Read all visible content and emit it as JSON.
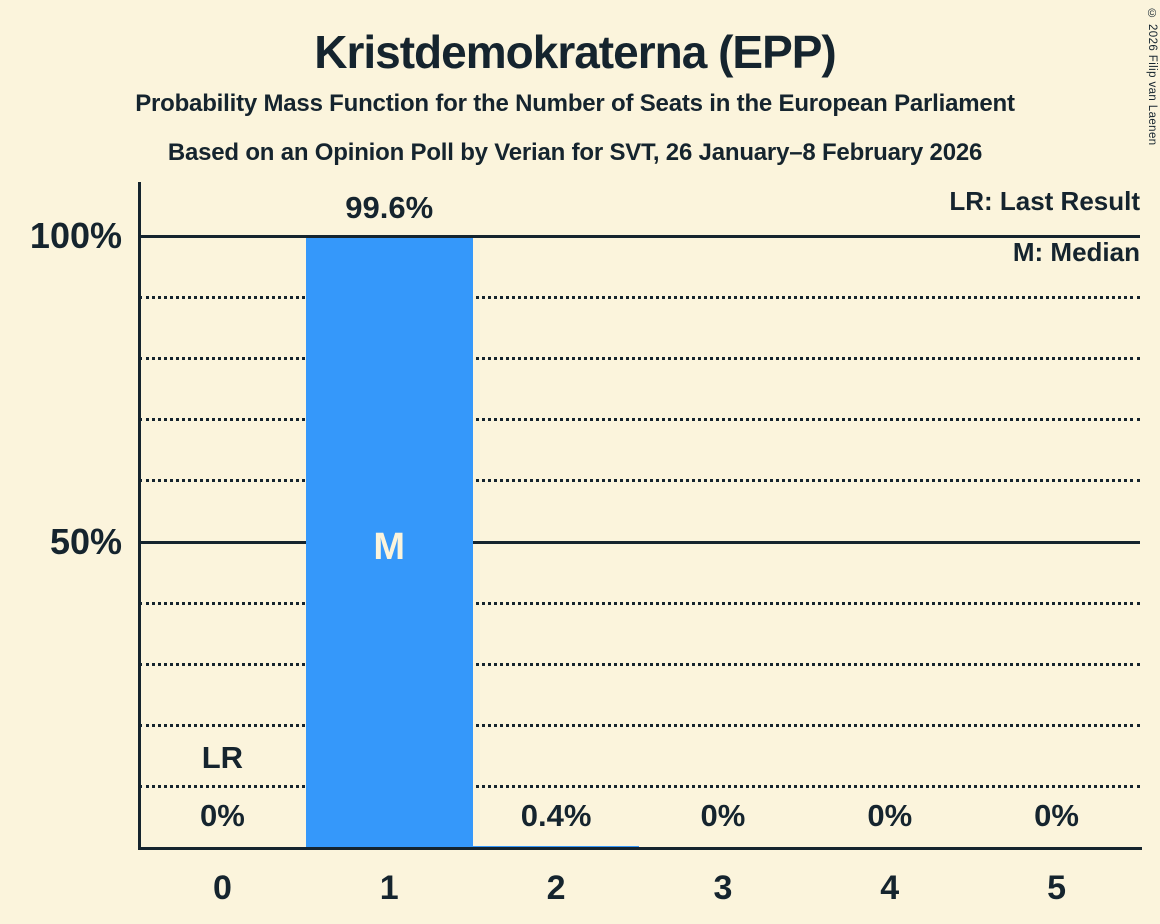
{
  "page": {
    "title": "Kristdemokraterna (EPP)",
    "subtitle": "Probability Mass Function for the Number of Seats in the European Parliament",
    "poll_line": "Based on an Opinion Poll by Verian for SVT, 26 January–8 February 2026",
    "copyright": "© 2026 Filip van Laenen"
  },
  "legend": {
    "lr": "LR: Last Result",
    "m": "M: Median"
  },
  "chart_data": {
    "type": "bar",
    "title": "Kristdemokraterna (EPP)",
    "subtitle": "Probability Mass Function for the Number of Seats in the European Parliament",
    "source_line": "Based on an Opinion Poll by Verian for SVT, 26 January–8 February 2026",
    "xlabel": "",
    "ylabel": "",
    "categories": [
      "0",
      "1",
      "2",
      "3",
      "4",
      "5"
    ],
    "values": [
      0,
      99.6,
      0.4,
      0,
      0,
      0
    ],
    "value_labels": [
      "0%",
      "99.6%",
      "0.4%",
      "0%",
      "0%",
      "0%"
    ],
    "ylim": [
      0,
      100
    ],
    "yticks": [
      {
        "label": "100%",
        "value": 100
      },
      {
        "label": "50%",
        "value": 50
      }
    ],
    "gridlines": {
      "dotted_pct": [
        10,
        20,
        30,
        40,
        60,
        70,
        80,
        90
      ],
      "solid_pct": [
        50,
        100
      ]
    },
    "legend_position": "top-right",
    "annotations": {
      "lr_text": "LR",
      "lr_category": "0",
      "median_text": "M",
      "median_category": "1"
    },
    "colors": {
      "background": "#FBF4DC",
      "bar": "#3598FA",
      "ink": "#15242E",
      "median_text": "#FBF4DC"
    }
  }
}
